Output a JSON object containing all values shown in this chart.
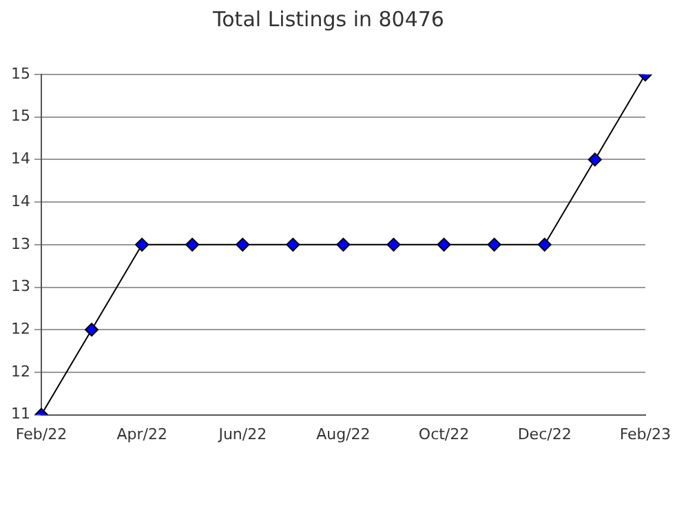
{
  "chart_data": {
    "type": "line",
    "title": "Total Listings in 80476",
    "categories": [
      "Feb/22",
      null,
      "Apr/22",
      null,
      "Jun/22",
      null,
      "Aug/22",
      null,
      "Oct/22",
      null,
      "Dec/22",
      null,
      "Feb/23"
    ],
    "series": [
      {
        "color": "#0000ff",
        "values": [
          11,
          12,
          13,
          13,
          13,
          13,
          13,
          13,
          13,
          13,
          13,
          14,
          15
        ]
      }
    ],
    "ylim": [
      11,
      15
    ],
    "yticks": [
      11,
      {
        "value": 11.5,
        "label": "12"
      },
      12,
      {
        "value": 12.5,
        "label": "13"
      },
      13,
      {
        "value": 13.5,
        "label": "14"
      },
      14,
      {
        "value": 14.5,
        "label": "15"
      },
      15
    ],
    "grid": "y",
    "legend": false,
    "marker": "diamond",
    "line_style": "solid"
  }
}
